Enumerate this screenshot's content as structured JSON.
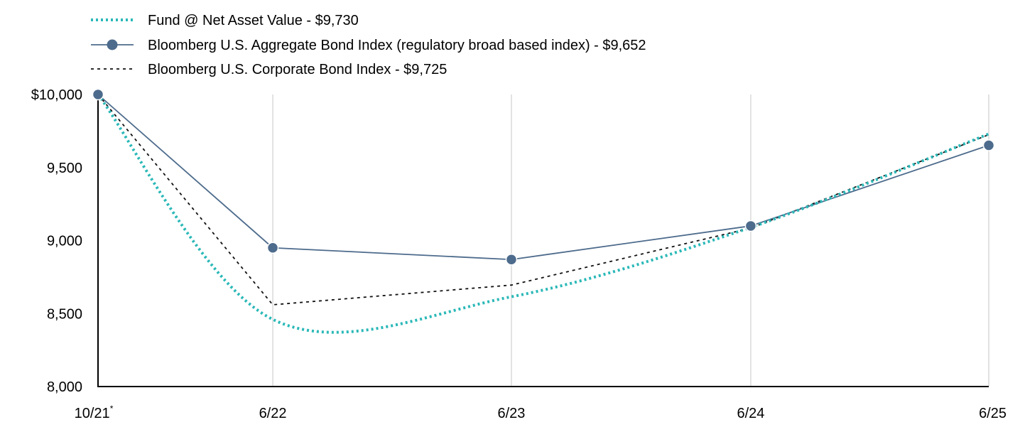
{
  "chart_data": {
    "type": "line",
    "title": "",
    "xlabel": "",
    "ylabel": "",
    "categories": [
      "10/21",
      "6/22",
      "6/23",
      "6/24",
      "6/25"
    ],
    "first_category_footnote_mark": "*",
    "ylim": [
      8000,
      10000
    ],
    "y_ticks": [
      {
        "value": 10000,
        "label": "$10,000"
      },
      {
        "value": 9500,
        "label": "9,500"
      },
      {
        "value": 9000,
        "label": "9,000"
      },
      {
        "value": 8500,
        "label": "8,500"
      },
      {
        "value": 8000,
        "label": "8,000"
      }
    ],
    "grid": {
      "vertical": true,
      "horizontal": false
    },
    "legend_position": "top-left",
    "series": [
      {
        "name": "Fund @ Net Asset Value - $9,730",
        "style": "dotted",
        "color": "#2bb8b8",
        "marker": "none",
        "values": [
          10000,
          8460,
          8615,
          9090,
          9730
        ]
      },
      {
        "name": "Bloomberg U.S. Aggregate Bond Index (regulatory broad based index) - $9,652",
        "style": "solid",
        "color": "#4d6b8c",
        "marker": "circle",
        "values": [
          10000,
          8950,
          8870,
          9100,
          9652
        ]
      },
      {
        "name": "Bloomberg U.S. Corporate Bond Index - $9,725",
        "style": "dashed",
        "color": "#111111",
        "marker": "none",
        "values": [
          10000,
          8560,
          8695,
          9085,
          9725
        ]
      }
    ]
  }
}
